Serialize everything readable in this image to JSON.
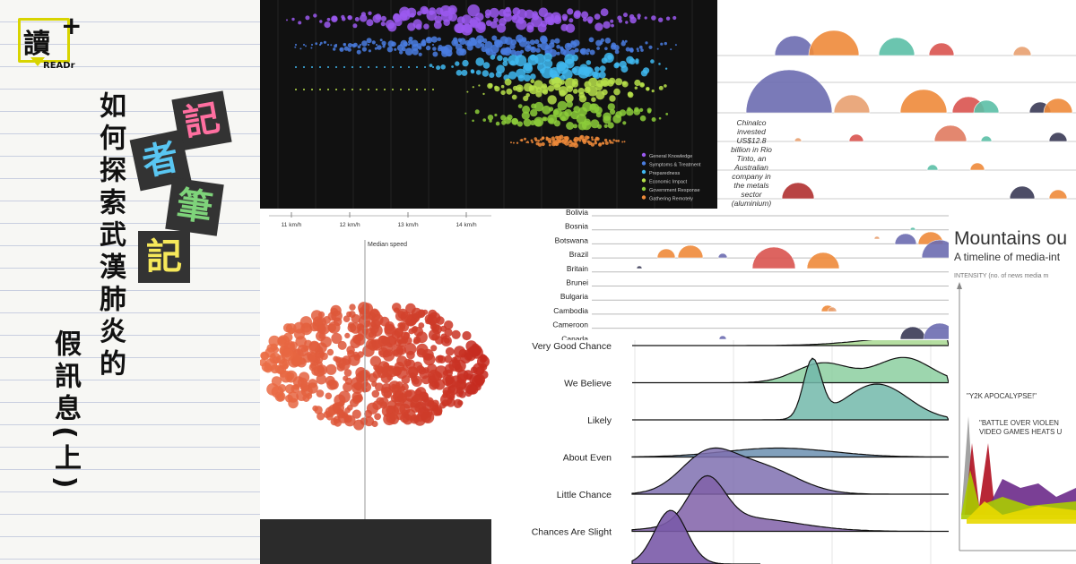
{
  "brand": {
    "logo_glyph": "讀",
    "logo_plus": "+",
    "logo_text": "READr"
  },
  "title": {
    "line1": "如何探索武漢肺炎的",
    "line2": "假訊息(上)"
  },
  "badges": [
    "記",
    "者",
    "筆",
    "記"
  ],
  "dark_chart": {
    "legend": [
      "General Knowledge",
      "Symptoms & Treatment",
      "Preparedness",
      "Economic Impact",
      "Government Response",
      "Gathering Remotely"
    ],
    "colors": [
      "#9b59f0",
      "#4a7de0",
      "#40b8f0",
      "#b7e04a",
      "#8ccc3a",
      "#ee8a3a"
    ]
  },
  "speed_chart": {
    "ticks": [
      "11 km/h",
      "12 km/h",
      "13 km/h",
      "14 km/h"
    ],
    "median_label": "Median speed"
  },
  "arcs_chart": {
    "annotation": [
      "Chinalco",
      "invested",
      "US$12.8",
      "billion in Rio",
      "Tinto, an",
      "Australian",
      "company in",
      "the metals",
      "sector",
      "(aluminium)"
    ]
  },
  "countries_chart": {
    "rows": [
      "Bolivia",
      "Bosnia",
      "Botswana",
      "Brazil",
      "Britain",
      "Brunei",
      "Bulgaria",
      "Cambodia",
      "Cameroon",
      "Canada"
    ]
  },
  "ridge_chart": {
    "labels": [
      "Very Good Chance",
      "We Believe",
      "Likely",
      "About Even",
      "Little Chance",
      "Chances Are Slight"
    ]
  },
  "mountains_chart": {
    "title": "Mountains ou",
    "subtitle": "A timeline of media-int",
    "axis_label": "INTENSITY (no. of news media m",
    "annot1": "\"Y2K APOCALYPSE!\"",
    "annot2a": "\"BATTLE OVER VIOLEN",
    "annot2b": "VIDEO GAMES HEATS U"
  }
}
